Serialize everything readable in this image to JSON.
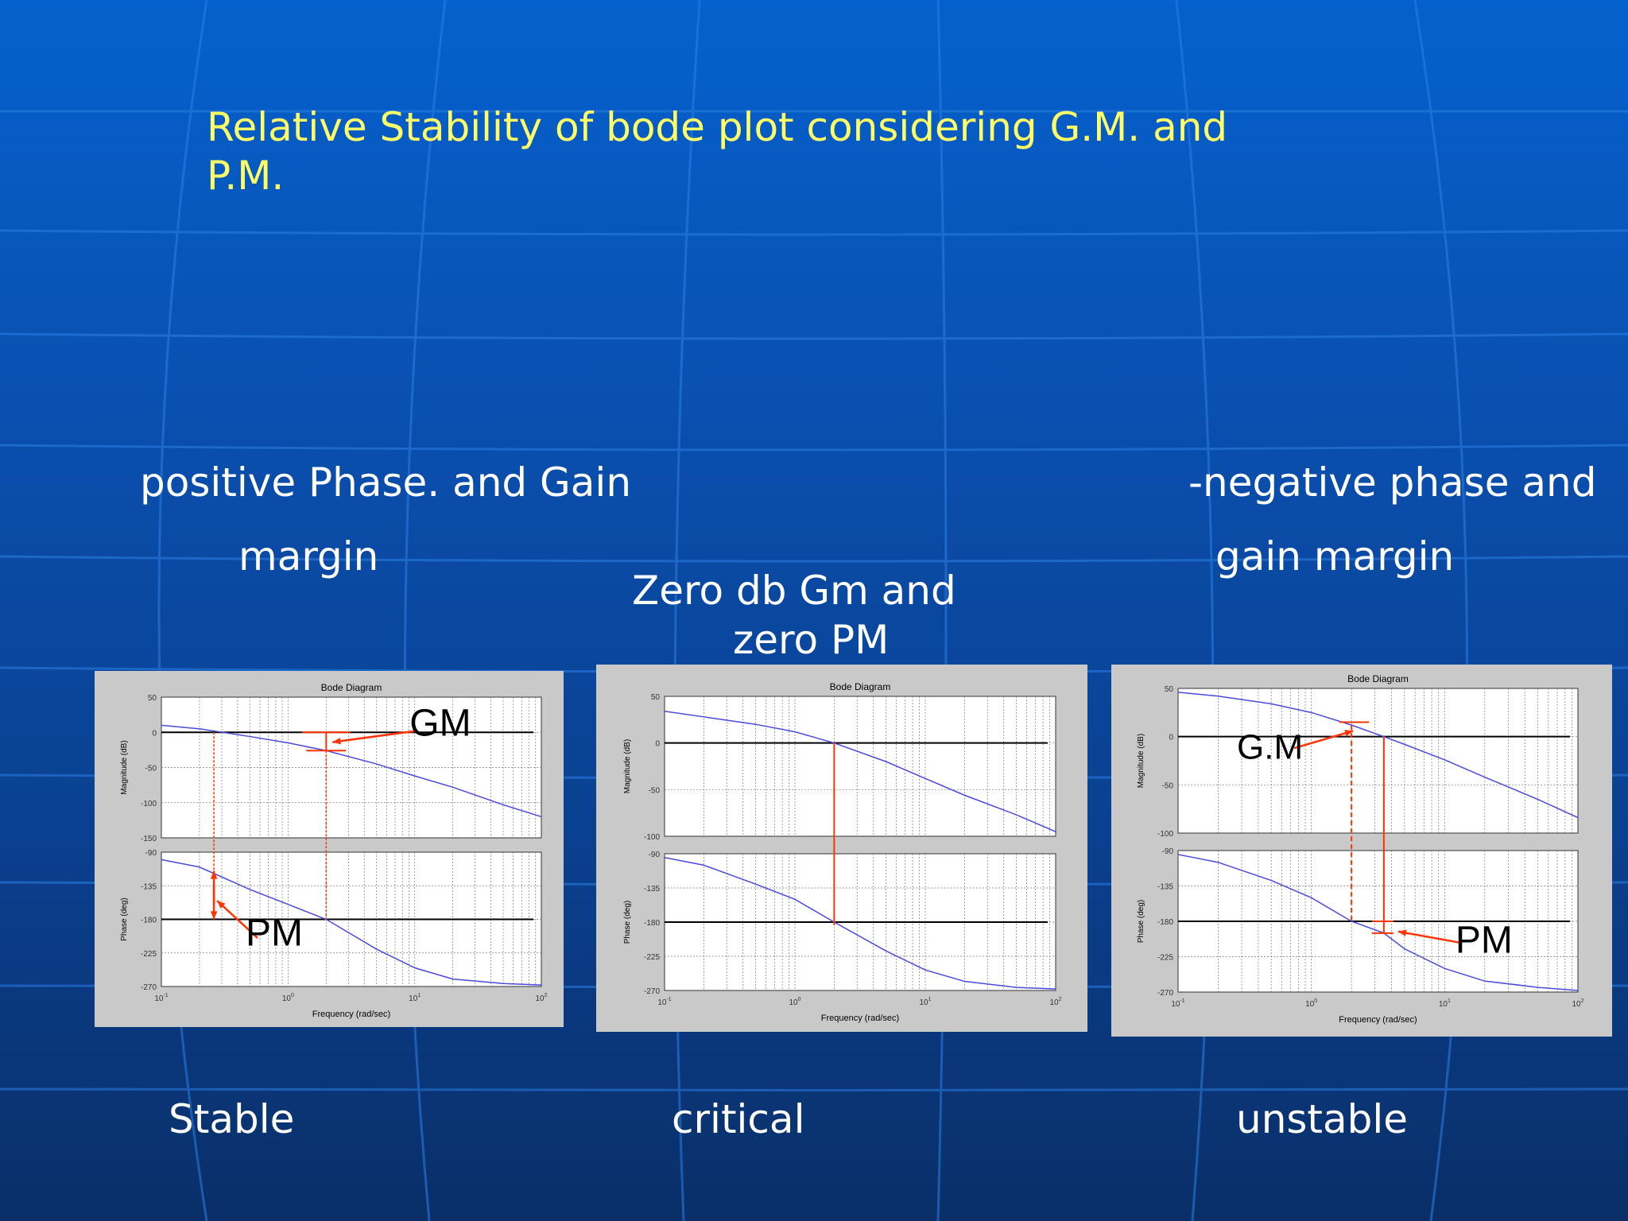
{
  "title": {
    "line1": "Relative Stability of bode plot  considering G.M. and",
    "line2": "P.M."
  },
  "captions": {
    "left_line1": "positive Phase. and Gain",
    "left_line2": "margin",
    "center_line1": "Zero db Gm  and",
    "center_line2": "zero PM",
    "right_line1": "-negative phase and",
    "right_line2": "gain margin"
  },
  "labels": {
    "stable": "Stable",
    "critical": "critical",
    "unstable": "unstable"
  },
  "colors": {
    "title": "#ffff66",
    "text": "#ffffff",
    "curve": "#4a4adf",
    "annotation": "#ff3300",
    "panel": "#c9c9c9"
  },
  "chart_data": [
    {
      "type": "line",
      "title": "Bode Diagram",
      "xlabel": "Frequency (rad/sec)",
      "x_scale": "log",
      "x_ticks": [
        "10-1",
        "100",
        "101",
        "102"
      ],
      "magnitude": {
        "ylabel": "Magnitude (dB)",
        "ylim": [
          -150,
          50
        ],
        "yticks": [
          "50",
          "0",
          "-50",
          "-100",
          "-150"
        ]
      },
      "phase": {
        "ylabel": "Phase (deg)",
        "ylim": [
          -270,
          -90
        ],
        "yticks": [
          "-90",
          "-135",
          "-180",
          "-225",
          "-270"
        ]
      },
      "mag_series": {
        "x": [
          0.1,
          0.2,
          0.5,
          1,
          2,
          5,
          10,
          20,
          50,
          100
        ],
        "values": [
          10,
          5,
          -6,
          -15,
          -26,
          -45,
          -62,
          -78,
          -103,
          -120
        ]
      },
      "phase_series": {
        "x": [
          0.1,
          0.2,
          0.5,
          1,
          2,
          5,
          10,
          20,
          50,
          100
        ],
        "values": [
          -100,
          -110,
          -140,
          -160,
          -180,
          -220,
          -245,
          -260,
          -266,
          -268
        ]
      },
      "annotations": [
        "GM",
        "PM"
      ],
      "status": "Stable"
    },
    {
      "type": "line",
      "title": "Bode Diagram",
      "xlabel": "Frequency (rad/sec)",
      "x_scale": "log",
      "x_ticks": [
        "10-1",
        "100",
        "101",
        "102"
      ],
      "magnitude": {
        "ylabel": "Magnitude (dB)",
        "ylim": [
          -100,
          50
        ],
        "yticks": [
          "50",
          "0",
          "-50",
          "-100"
        ]
      },
      "phase": {
        "ylabel": "Phase (deg)",
        "ylim": [
          -270,
          -90
        ],
        "yticks": [
          "-90",
          "-135",
          "-180",
          "-225",
          "-270"
        ]
      },
      "mag_series": {
        "x": [
          0.1,
          0.2,
          0.5,
          1,
          2,
          5,
          10,
          20,
          50,
          100
        ],
        "values": [
          34,
          28,
          20,
          12,
          0,
          -20,
          -38,
          -56,
          -77,
          -95
        ]
      },
      "phase_series": {
        "x": [
          0.1,
          0.2,
          0.5,
          1,
          2,
          5,
          10,
          20,
          50,
          100
        ],
        "values": [
          -95,
          -105,
          -130,
          -150,
          -180,
          -218,
          -243,
          -258,
          -266,
          -268
        ]
      },
      "annotations": [],
      "status": "critical"
    },
    {
      "type": "line",
      "title": "Bode Diagram",
      "xlabel": "Frequency (rad/sec)",
      "x_scale": "log",
      "x_ticks": [
        "10-1",
        "100",
        "101",
        "102"
      ],
      "magnitude": {
        "ylabel": "Magnitude (dB)",
        "ylim": [
          -100,
          50
        ],
        "yticks": [
          "50",
          "0",
          "-50",
          "-100"
        ]
      },
      "phase": {
        "ylabel": "Phase (deg)",
        "ylim": [
          -270,
          -90
        ],
        "yticks": [
          "-90",
          "-135",
          "-180",
          "-225",
          "-270"
        ]
      },
      "mag_series": {
        "x": [
          0.1,
          0.2,
          0.5,
          1,
          2,
          3.5,
          5,
          10,
          20,
          50,
          100
        ],
        "values": [
          46,
          42,
          34,
          25,
          12,
          0,
          -8,
          -24,
          -42,
          -65,
          -84
        ]
      },
      "phase_series": {
        "x": [
          0.1,
          0.2,
          0.5,
          1,
          2,
          3.5,
          5,
          10,
          20,
          50,
          100
        ],
        "values": [
          -95,
          -105,
          -128,
          -150,
          -180,
          -195,
          -215,
          -240,
          -256,
          -264,
          -268
        ]
      },
      "annotations": [
        "G.M",
        "PM"
      ],
      "status": "unstable"
    }
  ]
}
